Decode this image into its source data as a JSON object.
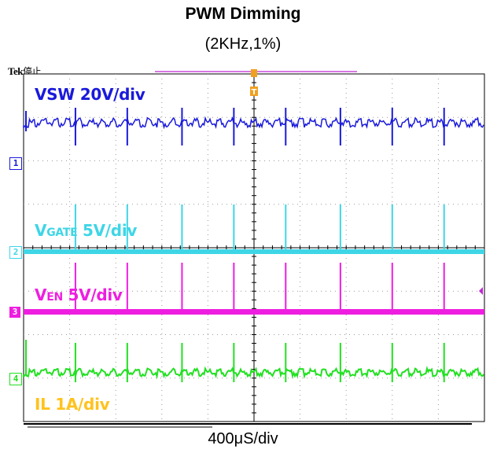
{
  "chart_data": {
    "type": "line",
    "title": "PWM Dimming",
    "subtitle": "(2KHz,1%)",
    "xlabel": "400μS/div",
    "scope_status": {
      "brand": "Tek",
      "state": "停止"
    },
    "trigger_marker": "T",
    "grid": true,
    "x_divisions": 10,
    "y_divisions": 8,
    "pwm_frequency_hz": 2000,
    "duty_cycle_percent": 1,
    "pulse_positions_div": [
      1.8,
      3.6,
      5.5,
      7.3,
      9.1,
      11.0,
      12.8,
      14.6
    ],
    "series": [
      {
        "name": "VSW 20V/div",
        "label_main": "VSW 20V/div",
        "label_sub": "",
        "label_tail": "",
        "channel": "1",
        "color": "#1a1adb",
        "volts_per_div": 20,
        "unit": "V",
        "baseline_level_div": 0,
        "on_level_div": 1.4
      },
      {
        "name": "VGATE 5V/div",
        "label_main": "V",
        "label_sub": "GATE",
        "label_tail": " 5V/div",
        "channel": "2",
        "color": "#3ed6e6",
        "volts_per_div": 5,
        "unit": "V",
        "baseline_level_div": 0,
        "pulse_level_div": 1.5
      },
      {
        "name": "VEN 5V/div",
        "label_main": "V",
        "label_sub": "EN",
        "label_tail": " 5V/div",
        "channel": "3",
        "color": "#ee1ee0",
        "volts_per_div": 5,
        "unit": "V",
        "baseline_level_div": 0,
        "pulse_level_div": 1.5
      },
      {
        "name": "IL 1A/div",
        "label_main": "IL 1A/div",
        "label_sub": "",
        "label_tail": "",
        "channel": "4",
        "color": "#22e022",
        "label_color": "#ffc21e",
        "amps_per_div": 1,
        "unit": "A",
        "baseline_level_div": 0,
        "pulse_level_div": 0.7
      }
    ]
  }
}
